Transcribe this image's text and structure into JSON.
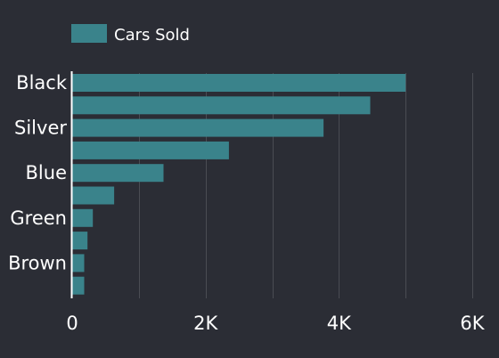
{
  "colors": {
    "background": "#2b2d35",
    "bar": "#3a838b",
    "grid": "#4a4c53",
    "axis": "#ffffff",
    "text": "#ffffff"
  },
  "chart_data": {
    "type": "bar",
    "orientation": "horizontal",
    "categories": [
      "Black",
      "",
      "Silver",
      "",
      "Blue",
      "",
      "Green",
      "",
      "Brown",
      ""
    ],
    "series": [
      {
        "name": "Cars Sold",
        "values": [
          5000,
          4470,
          3770,
          2350,
          1370,
          630,
          310,
          230,
          180,
          180
        ]
      }
    ],
    "xlim": [
      0,
      6000
    ],
    "x_ticks": [
      0,
      2000,
      4000,
      6000
    ],
    "x_tick_labels": [
      "0",
      "2K",
      "4K",
      "6K"
    ],
    "grid": "vertical",
    "legend": {
      "position": "top-left"
    }
  }
}
